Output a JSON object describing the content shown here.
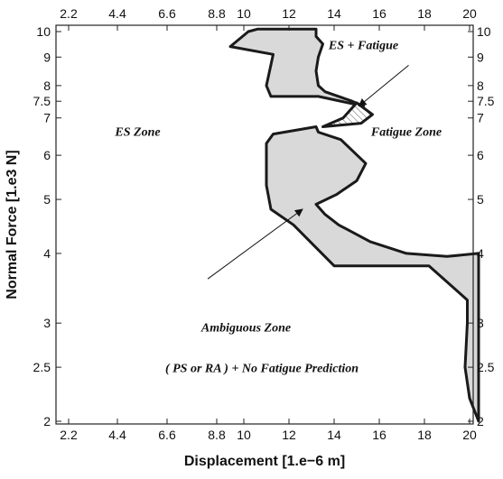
{
  "chart_data": {
    "type": "area",
    "title": "",
    "xlabel": "Displacement [1.e−6 m]",
    "ylabel": "Normal Force [1.e3 N]",
    "xlim": [
      2.2,
      20.4
    ],
    "ylim": [
      1.95,
      10.15
    ],
    "x_ticks": [
      2.2,
      4.4,
      6.6,
      8.8,
      10,
      12,
      14,
      16,
      18,
      20
    ],
    "x_tick_labels": [
      "2.2",
      "4.4",
      "6.6",
      "8.8",
      "10",
      "12",
      "14",
      "16",
      "18",
      "20"
    ],
    "y_ticks": [
      2,
      2.5,
      3,
      4,
      5,
      6,
      7,
      7.5,
      8,
      9,
      10
    ],
    "y_tick_labels": [
      "2",
      "2.5",
      "3",
      "4",
      "5",
      "6",
      "7",
      "7.5",
      "8",
      "9",
      "10"
    ],
    "grid": false,
    "colors": {
      "fill": "#d9d9d9",
      "stroke": "#1a1a1a",
      "axis": "#222222",
      "background": "#ffffff"
    },
    "regions": [
      {
        "name": "upper-band",
        "points": [
          [
            10.2,
            10.0
          ],
          [
            10.6,
            10.1
          ],
          [
            13.2,
            10.1
          ],
          [
            13.2,
            9.8
          ],
          [
            13.5,
            9.5
          ],
          [
            13.3,
            9.0
          ],
          [
            13.2,
            8.5
          ],
          [
            13.3,
            8.0
          ],
          [
            13.6,
            7.8
          ],
          [
            14.8,
            7.5
          ],
          [
            15.3,
            7.35
          ],
          [
            13.3,
            7.65
          ],
          [
            11.2,
            7.65
          ],
          [
            11.0,
            8.0
          ],
          [
            11.3,
            9.1
          ],
          [
            9.4,
            9.4
          ],
          [
            10.2,
            10.0
          ]
        ]
      },
      {
        "name": "es-fatigue-band",
        "hatched": true,
        "points": [
          [
            15.0,
            7.45
          ],
          [
            15.7,
            7.1
          ],
          [
            15.2,
            6.85
          ],
          [
            13.5,
            6.75
          ],
          [
            14.4,
            7.0
          ],
          [
            15.0,
            7.45
          ]
        ]
      },
      {
        "name": "ambiguous-band",
        "points": [
          [
            13.2,
            6.75
          ],
          [
            13.3,
            6.6
          ],
          [
            14.3,
            6.4
          ],
          [
            15.4,
            5.8
          ],
          [
            15.0,
            5.4
          ],
          [
            14.1,
            5.1
          ],
          [
            13.2,
            4.9
          ],
          [
            13.6,
            4.7
          ],
          [
            14.2,
            4.5
          ],
          [
            15.6,
            4.2
          ],
          [
            17.2,
            4.0
          ],
          [
            19.0,
            3.95
          ],
          [
            20.4,
            4.0
          ],
          [
            20.4,
            2.0
          ],
          [
            20.0,
            2.2
          ],
          [
            19.8,
            2.5
          ],
          [
            19.9,
            3.0
          ],
          [
            19.9,
            3.3
          ],
          [
            18.2,
            3.8
          ],
          [
            14.0,
            3.8
          ],
          [
            12.2,
            4.5
          ],
          [
            11.2,
            4.8
          ],
          [
            11.0,
            5.3
          ],
          [
            11.0,
            6.3
          ],
          [
            11.3,
            6.55
          ],
          [
            13.2,
            6.75
          ]
        ]
      }
    ],
    "annotations": [
      {
        "text": "ES + Fatigue",
        "x": 15.3,
        "y": 9.3
      },
      {
        "text": "ES Zone",
        "x": 5.3,
        "y": 6.5
      },
      {
        "text": "Fatigue Zone",
        "x": 17.2,
        "y": 6.5
      },
      {
        "text": "Ambiguous Zone",
        "x": 10.1,
        "y": 2.9
      },
      {
        "text": "( PS or RA ) + No Fatigue Prediction",
        "x": 10.8,
        "y": 2.45
      }
    ],
    "arrows": [
      {
        "from": [
          17.3,
          8.7
        ],
        "to": [
          15.1,
          7.35
        ]
      },
      {
        "from": [
          8.4,
          3.6
        ],
        "to": [
          12.6,
          4.8
        ]
      }
    ]
  }
}
